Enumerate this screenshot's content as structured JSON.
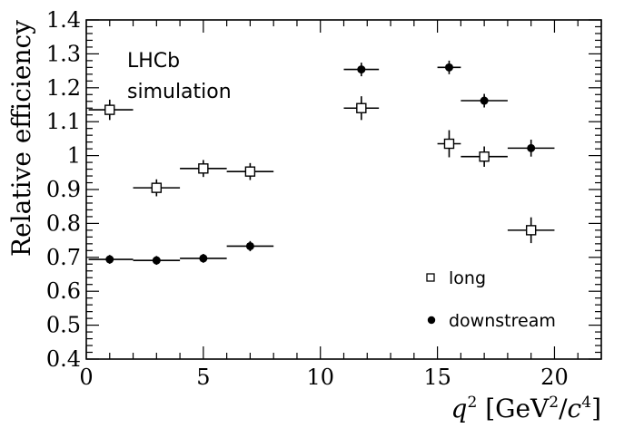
{
  "chart_data": {
    "type": "scatter",
    "xlabel": "q2 [GeV2/c4]",
    "ylabel": "Relative efficiency",
    "xlim": [
      0,
      22
    ],
    "ylim": [
      0.4,
      1.4
    ],
    "x_ticks": [
      "0",
      "5",
      "10",
      "15",
      "20"
    ],
    "y_ticks": [
      "0.4",
      "0.5",
      "0.6",
      "0.7",
      "0.8",
      "0.9",
      "1",
      "1.1",
      "1.2",
      "1.3",
      "1.4"
    ],
    "annotation": [
      "LHCb",
      "simulation"
    ],
    "legend_position": "bottom-right",
    "series": [
      {
        "name": "long",
        "marker": "open-square",
        "points": [
          {
            "x": 1.0,
            "y": 1.135,
            "xlo": 0.1,
            "xhi": 2.0,
            "err": 0.03
          },
          {
            "x": 3.0,
            "y": 0.905,
            "xlo": 2.0,
            "xhi": 4.0,
            "err": 0.025
          },
          {
            "x": 5.0,
            "y": 0.962,
            "xlo": 4.0,
            "xhi": 6.0,
            "err": 0.025
          },
          {
            "x": 7.0,
            "y": 0.953,
            "xlo": 6.0,
            "xhi": 8.0,
            "err": 0.025
          },
          {
            "x": 11.75,
            "y": 1.14,
            "xlo": 11.0,
            "xhi": 12.5,
            "err": 0.035
          },
          {
            "x": 15.5,
            "y": 1.035,
            "xlo": 15.0,
            "xhi": 16.0,
            "err": 0.04
          },
          {
            "x": 17.0,
            "y": 0.997,
            "xlo": 16.0,
            "xhi": 18.0,
            "err": 0.03
          },
          {
            "x": 19.0,
            "y": 0.78,
            "xlo": 18.0,
            "xhi": 20.0,
            "err": 0.038
          }
        ]
      },
      {
        "name": "downstream",
        "marker": "filled-circle",
        "points": [
          {
            "x": 1.0,
            "y": 0.694,
            "xlo": 0.1,
            "xhi": 2.0,
            "err": 0.013
          },
          {
            "x": 3.0,
            "y": 0.691,
            "xlo": 2.0,
            "xhi": 4.0,
            "err": 0.013
          },
          {
            "x": 5.0,
            "y": 0.697,
            "xlo": 4.0,
            "xhi": 6.0,
            "err": 0.013
          },
          {
            "x": 7.0,
            "y": 0.733,
            "xlo": 6.0,
            "xhi": 8.0,
            "err": 0.015
          },
          {
            "x": 11.75,
            "y": 1.254,
            "xlo": 11.0,
            "xhi": 12.5,
            "err": 0.02
          },
          {
            "x": 15.5,
            "y": 1.26,
            "xlo": 15.0,
            "xhi": 16.0,
            "err": 0.02
          },
          {
            "x": 17.0,
            "y": 1.162,
            "xlo": 16.0,
            "xhi": 18.0,
            "err": 0.02
          },
          {
            "x": 19.0,
            "y": 1.022,
            "xlo": 18.0,
            "xhi": 20.0,
            "err": 0.025
          }
        ]
      }
    ]
  }
}
